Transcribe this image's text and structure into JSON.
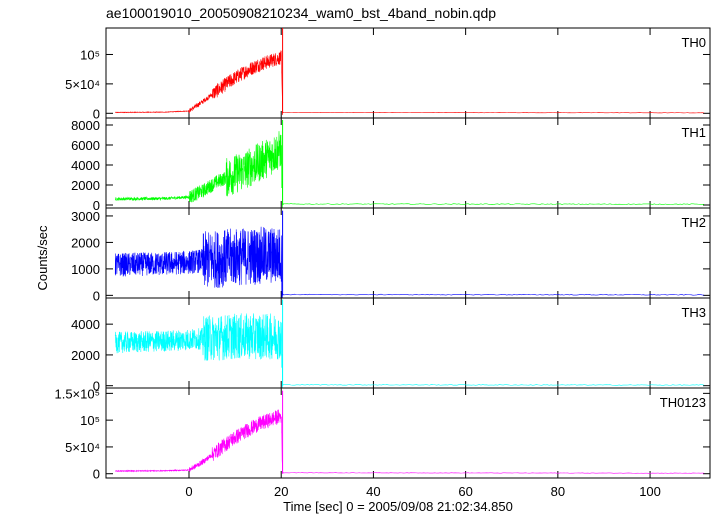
{
  "chart_data": {
    "type": "line",
    "title": "ae100019010_20050908210234_wam0_bst_4band_nobin.qdp",
    "xlabel": "Time [sec] 0 = 2005/09/08 21:02:34.850",
    "ylabel": "Counts/sec",
    "xlim": [
      -18,
      113
    ],
    "x_ticks": [
      0,
      20,
      40,
      60,
      80,
      100
    ],
    "x_tick_labels": [
      "0",
      "20",
      "40",
      "60",
      "80",
      "100"
    ],
    "data_x_range": [
      -16,
      112
    ],
    "cutoff_x": 20.3,
    "shared_x_axis": true,
    "panels": [
      {
        "name": "TH0",
        "color": "#ff0000",
        "ylim": [
          -8000,
          145000
        ],
        "y_ticks": [
          0,
          50000,
          100000
        ],
        "y_tick_labels": [
          "0",
          "5×10⁴",
          "10⁵"
        ],
        "profile": {
          "x": [
            -16,
            -5,
            0,
            3,
            6,
            9,
            12,
            15,
            18,
            20,
            20.3,
            112
          ],
          "y": [
            1500,
            2000,
            4000,
            20000,
            38000,
            55000,
            70000,
            82000,
            90000,
            95000,
            1500,
            800
          ]
        },
        "noise": [
          {
            "x": [
              -16,
              0
            ],
            "amp": 500
          },
          {
            "x": [
              0,
              5
            ],
            "amp": 4000
          },
          {
            "x": [
              5,
              20.3
            ],
            "amp": 12000
          },
          {
            "x": [
              20.3,
              112
            ],
            "amp": 300
          }
        ],
        "spike_max": 145000
      },
      {
        "name": "TH1",
        "color": "#00ff00",
        "ylim": [
          -300,
          8700
        ],
        "y_ticks": [
          0,
          2000,
          4000,
          6000,
          8000
        ],
        "y_tick_labels": [
          "0",
          "2000",
          "4000",
          "6000",
          "8000"
        ],
        "profile": {
          "x": [
            -16,
            -5,
            0,
            3,
            6,
            9,
            12,
            15,
            18,
            20,
            20.3,
            112
          ],
          "y": [
            600,
            650,
            800,
            1400,
            2300,
            2900,
            3500,
            4200,
            5000,
            5600,
            100,
            80
          ]
        },
        "noise": [
          {
            "x": [
              -16,
              0
            ],
            "amp": 150
          },
          {
            "x": [
              0,
              8
            ],
            "amp": 700
          },
          {
            "x": [
              8,
              20.3
            ],
            "amp": 2000
          },
          {
            "x": [
              20.3,
              112
            ],
            "amp": 40
          }
        ],
        "spike_max": 8500
      },
      {
        "name": "TH2",
        "color": "#0000ff",
        "ylim": [
          -100,
          3300
        ],
        "y_ticks": [
          0,
          1000,
          2000,
          3000
        ],
        "y_tick_labels": [
          "0",
          "1000",
          "2000",
          "3000"
        ],
        "profile": {
          "x": [
            -16,
            -5,
            0,
            5,
            10,
            15,
            20,
            20.3,
            112
          ],
          "y": [
            1150,
            1200,
            1250,
            1350,
            1450,
            1500,
            1500,
            30,
            20
          ]
        },
        "noise": [
          {
            "x": [
              -16,
              3
            ],
            "amp": 450
          },
          {
            "x": [
              3,
              20.3
            ],
            "amp": 1100
          },
          {
            "x": [
              20.3,
              112
            ],
            "amp": 15
          }
        ],
        "spike_max": 3200
      },
      {
        "name": "TH3",
        "color": "#00ffff",
        "ylim": [
          -150,
          5700
        ],
        "y_ticks": [
          0,
          2000,
          4000
        ],
        "y_tick_labels": [
          "0",
          "2000",
          "4000"
        ],
        "profile": {
          "x": [
            -16,
            -5,
            0,
            5,
            10,
            15,
            20,
            20.3,
            112
          ],
          "y": [
            2800,
            2900,
            3000,
            3100,
            3200,
            3200,
            3200,
            60,
            40
          ]
        },
        "noise": [
          {
            "x": [
              -16,
              3
            ],
            "amp": 700
          },
          {
            "x": [
              3,
              20.3
            ],
            "amp": 1500
          },
          {
            "x": [
              20.3,
              112
            ],
            "amp": 25
          }
        ],
        "spike_max": 5600
      },
      {
        "name": "TH0123",
        "color": "#ff00ff",
        "ylim": [
          -8000,
          160000
        ],
        "y_ticks": [
          0,
          50000,
          100000,
          150000
        ],
        "y_tick_labels": [
          "0",
          "5×10⁴",
          "10⁵",
          "1.5×10⁵"
        ],
        "profile": {
          "x": [
            -16,
            -5,
            0,
            3,
            6,
            9,
            12,
            15,
            18,
            20,
            20.3,
            112
          ],
          "y": [
            5000,
            5500,
            7000,
            22000,
            42000,
            62000,
            78000,
            92000,
            102000,
            108000,
            1800,
            1000
          ]
        },
        "noise": [
          {
            "x": [
              -16,
              0
            ],
            "amp": 800
          },
          {
            "x": [
              0,
              5
            ],
            "amp": 5000
          },
          {
            "x": [
              5,
              20.3
            ],
            "amp": 14000
          },
          {
            "x": [
              20.3,
              112
            ],
            "amp": 400
          }
        ],
        "spike_max": 155000
      }
    ]
  }
}
